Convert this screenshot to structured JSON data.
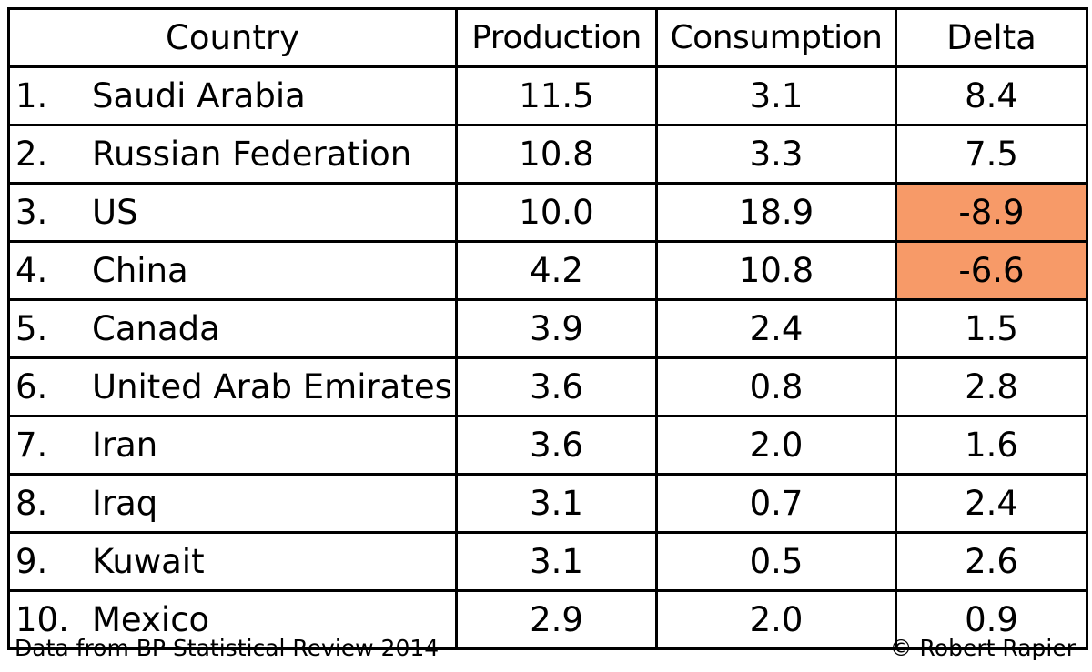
{
  "chart_data": {
    "type": "table",
    "columns": [
      "Country",
      "Production",
      "Consumption",
      "Delta"
    ],
    "rows": [
      {
        "rank": "1.",
        "country": "Saudi Arabia",
        "production": "11.5",
        "consumption": "3.1",
        "delta": "8.4"
      },
      {
        "rank": "2.",
        "country": "Russian Federation",
        "production": "10.8",
        "consumption": "3.3",
        "delta": "7.5"
      },
      {
        "rank": "3.",
        "country": "US",
        "production": "10.0",
        "consumption": "18.9",
        "delta": "-8.9"
      },
      {
        "rank": "4.",
        "country": "China",
        "production": "4.2",
        "consumption": "10.8",
        "delta": "-6.6"
      },
      {
        "rank": "5.",
        "country": "Canada",
        "production": "3.9",
        "consumption": "2.4",
        "delta": "1.5"
      },
      {
        "rank": "6.",
        "country": "United Arab Emirates",
        "production": "3.6",
        "consumption": "0.8",
        "delta": "2.8"
      },
      {
        "rank": "7.",
        "country": "Iran",
        "production": "3.6",
        "consumption": "2.0",
        "delta": "1.6"
      },
      {
        "rank": "8.",
        "country": "Iraq",
        "production": "3.1",
        "consumption": "0.7",
        "delta": "2.4"
      },
      {
        "rank": "9.",
        "country": "Kuwait",
        "production": "3.1",
        "consumption": "0.5",
        "delta": "2.6"
      },
      {
        "rank": "10.",
        "country": "Mexico",
        "production": "2.9",
        "consumption": "2.0",
        "delta": "0.9"
      }
    ],
    "highlight_color": "#f79a68",
    "highlight_rule": "delta < 0"
  },
  "footer": {
    "source": "Data from BP Statistical Review 2014",
    "copyright": "© Robert Rapier"
  }
}
